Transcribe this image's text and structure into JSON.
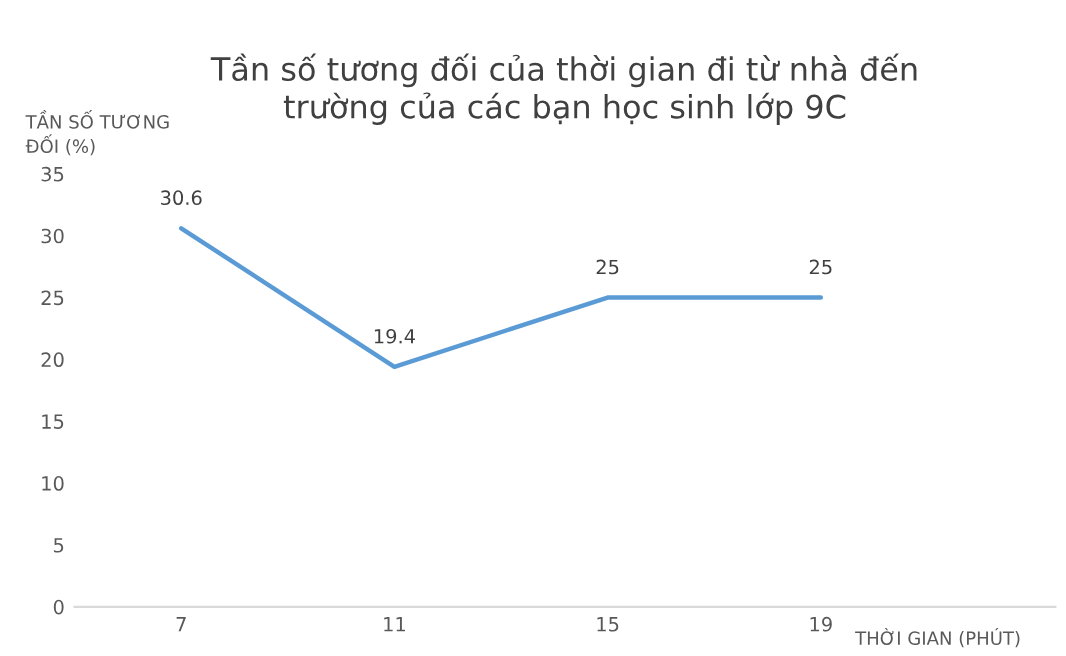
{
  "chart_data": {
    "type": "line",
    "title": "Tần số tương đối của thời gian đi từ nhà đến\ntrường của các bạn học sinh lớp 9C",
    "xlabel": "THỜI GIAN (PHÚT)",
    "ylabel": "TẦN SỐ TƯƠNG\nĐỐI (%)",
    "categories": [
      "7",
      "11",
      "15",
      "19"
    ],
    "series": [
      {
        "color": "#5b9bd5",
        "values": [
          30.6,
          19.4,
          25,
          25
        ]
      }
    ],
    "ylim": [
      0,
      35
    ],
    "yticks": [
      0,
      5,
      10,
      15,
      20,
      25,
      30,
      35
    ],
    "data_labels": true,
    "grid": false,
    "legend": false,
    "marker": "none",
    "line_style": "solid"
  }
}
